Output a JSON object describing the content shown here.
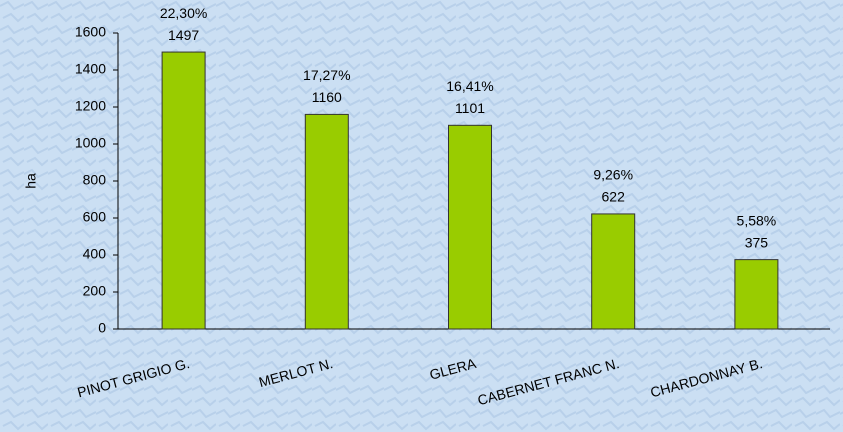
{
  "chart_data": {
    "type": "bar",
    "y_label": "ha",
    "categories": [
      "PINOT GRIGIO G.",
      "MERLOT N.",
      "GLERA",
      "CABERNET FRANC N.",
      "CHARDONNAY B."
    ],
    "values": [
      1497,
      1160,
      1101,
      622,
      375
    ],
    "percent_labels": [
      "22,30%",
      "17,27%",
      "16,41%",
      "9,26%",
      "5,58%"
    ],
    "color": "#99cc00",
    "ylim": [
      0,
      1600
    ],
    "yticks": [
      0,
      200,
      400,
      600,
      800,
      1000,
      1200,
      1400,
      1600
    ]
  }
}
